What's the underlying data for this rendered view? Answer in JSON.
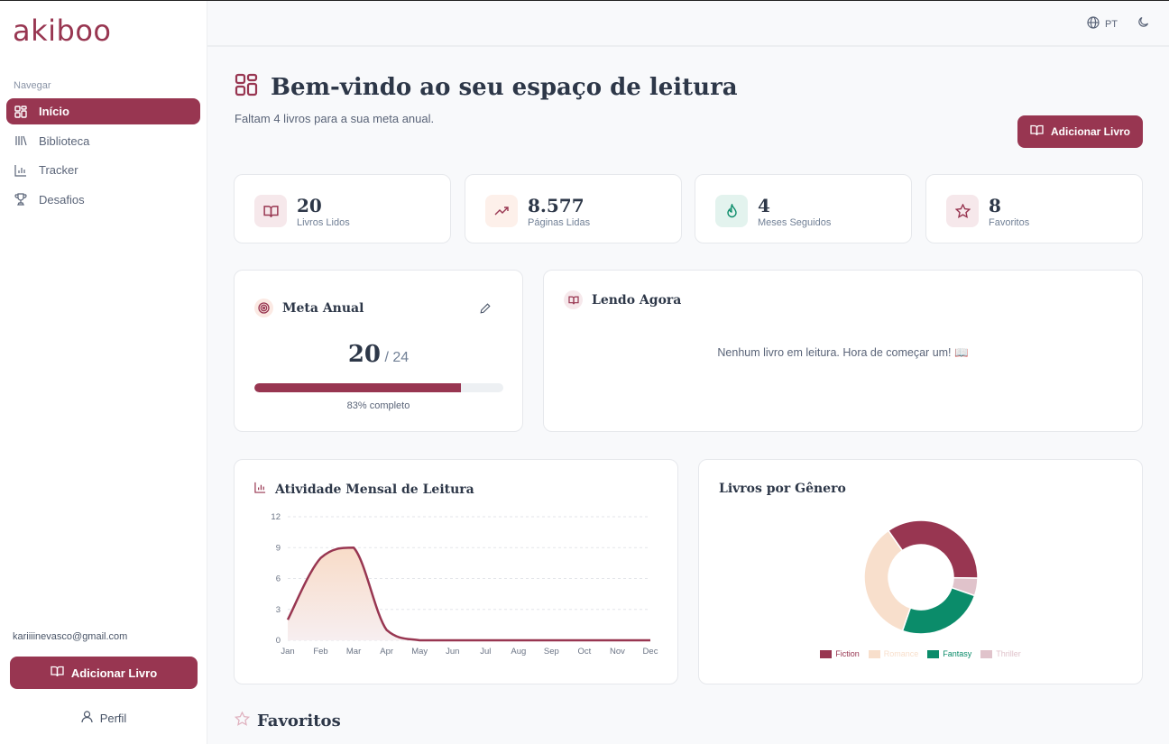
{
  "app": {
    "logo": "akiboo",
    "brand_color": "#983651"
  },
  "sidebar": {
    "heading": "Navegar",
    "items": [
      {
        "label": "Início",
        "icon": "dashboard-icon",
        "active": true
      },
      {
        "label": "Biblioteca",
        "icon": "library-icon",
        "active": false
      },
      {
        "label": "Tracker",
        "icon": "bar-chart-icon",
        "active": false
      },
      {
        "label": "Desafios",
        "icon": "trophy-icon",
        "active": false
      }
    ],
    "user_email": "kariiiinevasco@gmail.com",
    "add_book_label": "Adicionar Livro",
    "profile_label": "Perfil"
  },
  "topbar": {
    "language": "PT",
    "theme_icon": "moon-icon"
  },
  "header": {
    "title": "Bem-vindo ao seu espaço de leitura",
    "subtitle": "Faltam 4 livros para a sua meta anual.",
    "add_book_label": "Adicionar Livro"
  },
  "stats": [
    {
      "value": "20",
      "label": "Livros Lidos",
      "icon": "book-open-icon",
      "bg": "#f6e8eb",
      "color": "#983651"
    },
    {
      "value": "8.577",
      "label": "Páginas Lidas",
      "icon": "trending-up-icon",
      "bg": "#fdf0ea",
      "color": "#983651"
    },
    {
      "value": "4",
      "label": "Meses Seguidos",
      "icon": "flame-icon",
      "bg": "#e3f3ee",
      "color": "#0b8c6a"
    },
    {
      "value": "8",
      "label": "Favoritos",
      "icon": "star-icon",
      "bg": "#f6e8eb",
      "color": "#983651"
    }
  ],
  "annual_goal": {
    "title": "Meta Anual",
    "read": "20",
    "target": "/ 24",
    "percent": 83,
    "percent_label": "83% completo"
  },
  "reading_now": {
    "title": "Lendo Agora",
    "empty_message": "Nenhum livro em leitura. Hora de começar um! 📖"
  },
  "activity": {
    "title": "Atividade Mensal de Leitura"
  },
  "genres": {
    "title": "Livros por Gênero"
  },
  "favorites": {
    "title": "Favoritos"
  },
  "chart_data": [
    {
      "type": "area",
      "title": "Atividade Mensal de Leitura",
      "categories": [
        "Jan",
        "Feb",
        "Mar",
        "Apr",
        "May",
        "Jun",
        "Jul",
        "Aug",
        "Sep",
        "Oct",
        "Nov",
        "Dec"
      ],
      "values": [
        2,
        8,
        9,
        1,
        0,
        0,
        0,
        0,
        0,
        0,
        0,
        0
      ],
      "yticks": [
        0,
        3,
        6,
        9,
        12
      ],
      "ylim": [
        0,
        12
      ],
      "grid": "dashed horizontal",
      "line_color": "#983651",
      "fill_gradient": [
        "#f8dcc8",
        "#f7eef0"
      ]
    },
    {
      "type": "pie",
      "donut": true,
      "title": "Livros por Gênero",
      "labels": [
        "Fiction",
        "Thriller",
        "Fantasy",
        "Romance"
      ],
      "values": [
        7,
        1,
        5,
        7
      ],
      "colors": [
        "#983651",
        "#e0c3cb",
        "#0b8c6a",
        "#f8dfcc"
      ],
      "legend_order": [
        "Fiction",
        "Romance",
        "Fantasy",
        "Thriller"
      ],
      "legend_position": "bottom"
    }
  ]
}
